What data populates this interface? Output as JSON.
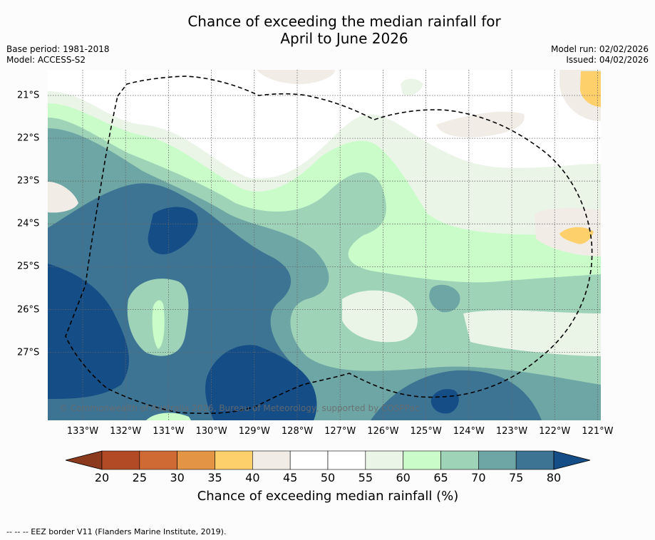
{
  "title_line1": "Chance of exceeding the median rainfall for",
  "title_line2": "April to June 2026",
  "base_period": "Base period: 1981-2018",
  "model": "Model: ACCESS-S2",
  "model_run": "Model run: 02/02/2026",
  "issued": "Issued: 04/02/2026",
  "copyright": "© Commonwealth of Australia 2026, Bureau of Meteorology, supported by COSPPac",
  "footer": "--  --  -- EEZ border V11 (Flanders Marine Institute, 2019).",
  "lon_labels": [
    "133°W",
    "132°W",
    "131°W",
    "130°W",
    "129°W",
    "128°W",
    "127°W",
    "126°W",
    "125°W",
    "124°W",
    "123°W",
    "122°W",
    "121°W"
  ],
  "lat_labels": [
    "21°S",
    "22°S",
    "23°S",
    "24°S",
    "25°S",
    "26°S",
    "27°S"
  ],
  "colorbar": {
    "title": "Chance of exceeding median rainfall (%)",
    "ticks": [
      "20",
      "25",
      "30",
      "35",
      "40",
      "45",
      "50",
      "55",
      "60",
      "65",
      "70",
      "75",
      "80"
    ],
    "bins": [
      {
        "range": "<20",
        "color": "#8b3a1e"
      },
      {
        "range": "20-25",
        "color": "#b24a25"
      },
      {
        "range": "25-30",
        "color": "#d06a35"
      },
      {
        "range": "30-35",
        "color": "#e39545"
      },
      {
        "range": "35-40",
        "color": "#fdd06b"
      },
      {
        "range": "40-45",
        "color": "#f1ede6"
      },
      {
        "range": "45-50",
        "color": "#ffffff"
      },
      {
        "range": "50-55",
        "color": "#ffffff"
      },
      {
        "range": "55-60",
        "color": "#eaf5e8"
      },
      {
        "range": "60-65",
        "color": "#c9fcc9"
      },
      {
        "range": "65-70",
        "color": "#9ed3b8"
      },
      {
        "range": "70-75",
        "color": "#6da6a4"
      },
      {
        "range": "75-80",
        "color": "#3d7494"
      },
      {
        "range": ">80",
        "color": "#154d86"
      }
    ]
  }
}
